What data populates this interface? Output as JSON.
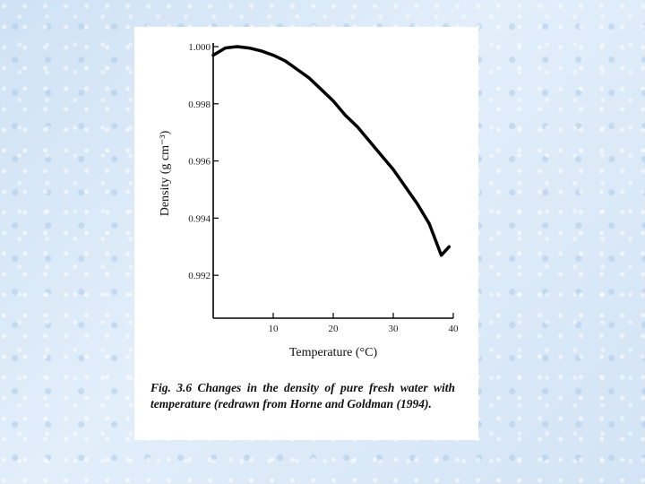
{
  "chart_data": {
    "type": "line",
    "xlabel": "Temperature (°C)",
    "ylabel": "Density (g cm⁻³)",
    "x_ticks": [
      10,
      20,
      30,
      40
    ],
    "y_ticks": [
      "1.000",
      "0.998",
      "0.996",
      "0.994",
      "0.992"
    ],
    "xlim": [
      0,
      40
    ],
    "ylim": [
      0.9905,
      1.0
    ],
    "grid": false,
    "series": [
      {
        "x": [
          0,
          2,
          4,
          6,
          8,
          10,
          12,
          14,
          16,
          18,
          20,
          22,
          24,
          26,
          28,
          30,
          32,
          34,
          36,
          38,
          39.3
        ],
        "y": [
          0.9997,
          0.99995,
          1.0,
          0.99995,
          0.99985,
          0.9997,
          0.9995,
          0.9992,
          0.9989,
          0.9985,
          0.9981,
          0.9976,
          0.9972,
          0.9967,
          0.9962,
          0.9957,
          0.9951,
          0.9945,
          0.9938,
          0.9927,
          0.993
        ]
      }
    ]
  },
  "caption": "Fig. 3.6 Changes in the density of pure fresh water with temperature (redrawn from Horne and Goldman (1994)."
}
